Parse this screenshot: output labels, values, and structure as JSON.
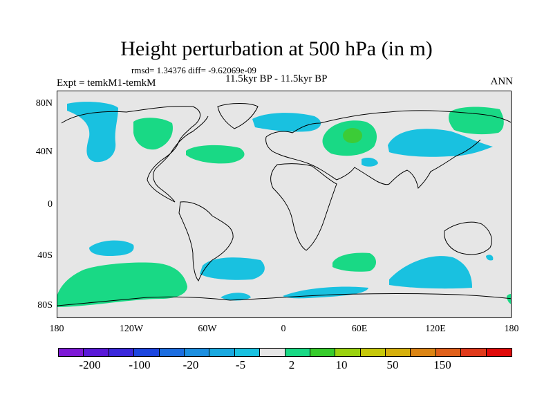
{
  "title": "Height perturbation at 500 hPa (in m)",
  "stats": "rmsd= 1.34376 diff= -9.62069e-09",
  "experiment": "Expt = temkM1-temkM",
  "period": "11.5kyr BP - 11.5kyr BP",
  "season": "ANN",
  "lat_labels": [
    "80N",
    "40N",
    "0",
    "40S",
    "80S"
  ],
  "lon_labels": [
    "180",
    "120W",
    "60W",
    "0",
    "60E",
    "120E",
    "180"
  ],
  "colors": {
    "background_land_ocean": "#e6e6e6",
    "negative_band": "#19c1e0",
    "positive_band": "#19d985",
    "positive_core": "#3ccc37"
  },
  "colorbar": {
    "colors": [
      "#7e19d6",
      "#5a19d8",
      "#3b28dc",
      "#1c46df",
      "#1d6ee0",
      "#1c8fe0",
      "#1aa9e0",
      "#19c1e0",
      "#e6e6e6",
      "#19d985",
      "#37cc2c",
      "#9ad20f",
      "#c6c80a",
      "#d6b00d",
      "#dc8514",
      "#e0601a",
      "#e03a1b",
      "#e00a0a"
    ],
    "labels": [
      "-200",
      "-100",
      "-20",
      "-5",
      "2",
      "10",
      "50",
      "150"
    ]
  }
}
